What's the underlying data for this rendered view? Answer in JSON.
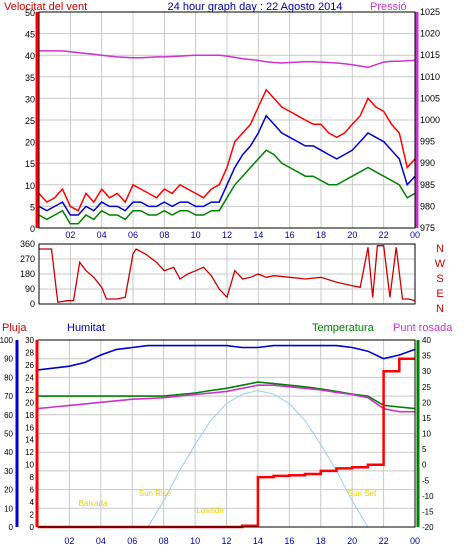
{
  "window": {
    "title": "24 hour graph day : 22 Agosto 2014"
  },
  "colors": {
    "background": "#ffffff",
    "plot_bg": "#ffffff",
    "grid": "#c8c8c8",
    "frame": "#000000",
    "wind_gust": "#ff0000",
    "wind_avg": "#0000cc",
    "wind_speed": "#008000",
    "pressure": "#cc33cc",
    "direction": "#cc0000",
    "rain": "#ff0000",
    "humidity": "#0000cc",
    "temperature": "#008000",
    "dewpoint": "#cc33cc",
    "solar": "#99ccee",
    "annotation": "#e6d200",
    "time_axis": "#0000aa"
  },
  "chart_data": [
    {
      "type": "line",
      "panel": "wind-pressure",
      "title": "24 hour graph day : 22 Agosto 2014",
      "ylabel_left": "Velocitat del vent",
      "ylabel_right": "Pressió",
      "x_ticks": [
        "02",
        "04",
        "06",
        "08",
        "10",
        "12",
        "14",
        "16",
        "18",
        "20",
        "22",
        "00"
      ],
      "ylim_left": [
        0,
        50
      ],
      "yticks_left": [
        0,
        5,
        10,
        15,
        20,
        25,
        30,
        35,
        40,
        45,
        50
      ],
      "ylim_right": [
        975,
        1025
      ],
      "yticks_right": [
        975,
        980,
        985,
        990,
        995,
        1000,
        1005,
        1010,
        1015,
        1020,
        1025
      ],
      "grid": true,
      "hours": [
        0,
        0.5,
        1,
        1.5,
        2,
        2.5,
        3,
        3.5,
        4,
        4.5,
        5,
        5.5,
        6,
        6.5,
        7,
        7.5,
        8,
        8.5,
        9,
        9.5,
        10,
        10.5,
        11,
        11.5,
        12,
        12.5,
        13,
        13.5,
        14,
        14.5,
        15,
        15.5,
        16,
        16.5,
        17,
        17.5,
        18,
        18.5,
        19,
        19.5,
        20,
        20.5,
        21,
        21.5,
        22,
        22.5,
        23,
        23.5,
        24
      ],
      "series": [
        {
          "axis": "left",
          "color_key": "wind_gust",
          "values": [
            8,
            6,
            7,
            9,
            5,
            4,
            8,
            6,
            9,
            7,
            8,
            6,
            10,
            9,
            8,
            7,
            9,
            8,
            10,
            9,
            8,
            7,
            9,
            10,
            14,
            20,
            22,
            24,
            28,
            32,
            30,
            28,
            27,
            26,
            25,
            24,
            24,
            22,
            21,
            22,
            24,
            26,
            30,
            28,
            27,
            24,
            22,
            14,
            16
          ]
        },
        {
          "axis": "left",
          "color_key": "wind_avg",
          "values": [
            5,
            4,
            5,
            6,
            3,
            3,
            5,
            4,
            6,
            5,
            5,
            4,
            6,
            6,
            5,
            5,
            6,
            5,
            6,
            6,
            5,
            5,
            6,
            6,
            10,
            14,
            17,
            19,
            22,
            26,
            24,
            22,
            21,
            20,
            19,
            19,
            18,
            17,
            16,
            17,
            18,
            20,
            22,
            21,
            20,
            18,
            16,
            10,
            12
          ]
        },
        {
          "axis": "left",
          "color_key": "wind_speed",
          "values": [
            3,
            2,
            3,
            4,
            1,
            1,
            3,
            2,
            4,
            3,
            3,
            2,
            4,
            4,
            3,
            3,
            4,
            3,
            4,
            4,
            3,
            3,
            4,
            4,
            7,
            10,
            12,
            14,
            16,
            18,
            17,
            15,
            14,
            13,
            12,
            12,
            11,
            10,
            10,
            11,
            12,
            13,
            14,
            13,
            12,
            11,
            10,
            7,
            8
          ]
        },
        {
          "axis": "right",
          "color_key": "pressure",
          "values": [
            1016,
            1016,
            1016,
            1016,
            1015.8,
            1015.6,
            1015.4,
            1015.2,
            1015,
            1014.8,
            1014.6,
            1014.5,
            1014.4,
            1014.4,
            1014.5,
            1014.6,
            1014.6,
            1014.7,
            1014.8,
            1014.9,
            1015,
            1015,
            1015,
            1015,
            1014.8,
            1014.5,
            1014.2,
            1014,
            1013.8,
            1013.5,
            1013.3,
            1013.2,
            1013.3,
            1013.4,
            1013.5,
            1013.5,
            1013.4,
            1013.3,
            1013.2,
            1013,
            1012.8,
            1012.5,
            1012.2,
            1012.8,
            1013.4,
            1013.6,
            1013.6,
            1013.7,
            1013.8
          ]
        }
      ]
    },
    {
      "type": "line",
      "panel": "wind-direction",
      "ylim": [
        0,
        360
      ],
      "yticks": [
        0,
        90,
        180,
        270,
        360
      ],
      "compass_labels": [
        "N",
        "W",
        "S",
        "E",
        "N"
      ],
      "grid": true,
      "series": [
        {
          "color_key": "direction",
          "hours": [
            0,
            0.8,
            1.2,
            1.8,
            2.2,
            2.6,
            3,
            3.5,
            4,
            4.3,
            5,
            5.5,
            6,
            6.2,
            6.8,
            7.5,
            8,
            8.6,
            9,
            9.5,
            10,
            10.5,
            11,
            11.5,
            12,
            12.5,
            13,
            13.5,
            14,
            14.5,
            15,
            16,
            17,
            18,
            19,
            20,
            20.5,
            21,
            21.3,
            21.6,
            22,
            22.4,
            22.8,
            23.2,
            23.6,
            24
          ],
          "values": [
            330,
            330,
            10,
            20,
            20,
            250,
            200,
            160,
            100,
            30,
            30,
            40,
            300,
            330,
            300,
            250,
            200,
            220,
            150,
            180,
            200,
            220,
            170,
            90,
            40,
            200,
            150,
            160,
            180,
            160,
            170,
            160,
            150,
            160,
            130,
            110,
            100,
            340,
            40,
            350,
            350,
            40,
            340,
            30,
            30,
            20
          ]
        }
      ]
    },
    {
      "type": "line",
      "panel": "atmospheric",
      "ylabels": [
        "Pluja",
        "Humitat",
        "Temperatura",
        "Punt rosada"
      ],
      "x_ticks": [
        "02",
        "04",
        "06",
        "08",
        "10",
        "12",
        "14",
        "16",
        "18",
        "20",
        "22",
        "00"
      ],
      "humidity_axis": {
        "ylim": [
          0,
          100
        ],
        "ticks": [
          0,
          10,
          20,
          30,
          40,
          50,
          60,
          70,
          80,
          90,
          100
        ]
      },
      "rain_axis": {
        "ylim": [
          0,
          30
        ],
        "ticks": [
          0,
          2,
          4,
          6,
          8,
          10,
          12,
          14,
          16,
          18,
          20,
          22,
          24,
          26,
          28,
          30
        ]
      },
      "temperature_axis": {
        "ylim": [
          -20,
          40
        ],
        "ticks": [
          -20,
          -15,
          -10,
          -5,
          0,
          5,
          10,
          15,
          20,
          25,
          30,
          35,
          40
        ]
      },
      "annotations": [
        "Baixada",
        "Sun Rise",
        "Lowtide",
        "Sun Set"
      ],
      "grid": true,
      "hours": [
        0,
        1,
        2,
        3,
        4,
        5,
        6,
        7,
        8,
        9,
        10,
        11,
        12,
        13,
        14,
        15,
        16,
        17,
        18,
        19,
        20,
        21,
        22,
        23,
        24
      ],
      "series": [
        {
          "name": "Pluja",
          "axis": "rain",
          "color_key": "rain",
          "values": [
            0,
            0,
            0,
            0,
            0,
            0,
            0,
            0,
            0,
            0,
            0,
            0,
            0,
            0.2,
            8,
            8.2,
            8.3,
            8.5,
            9,
            9.4,
            9.6,
            10,
            25,
            27,
            27
          ]
        },
        {
          "name": "Humitat",
          "axis": "humidity",
          "color_key": "humidity",
          "values": [
            84,
            85,
            86,
            88,
            92,
            95,
            96,
            97,
            97,
            97,
            97,
            97,
            97,
            96,
            96,
            97,
            97,
            97,
            97,
            97,
            96,
            94,
            90,
            92,
            95
          ]
        },
        {
          "name": "Temperatura",
          "axis": "temperature",
          "color_key": "temperature",
          "values": [
            22,
            22,
            22,
            22,
            22,
            22,
            22,
            22,
            22,
            22.5,
            23,
            23.8,
            24.5,
            25.5,
            26.5,
            26,
            25.5,
            25,
            24.3,
            23.5,
            22.6,
            22,
            19,
            18.5,
            18
          ]
        },
        {
          "name": "Punt rosada",
          "axis": "temperature",
          "color_key": "dewpoint",
          "values": [
            18,
            18.5,
            19,
            19.5,
            20,
            20.5,
            21,
            21.2,
            21.5,
            22,
            22.5,
            23,
            23.5,
            24.5,
            25.5,
            25.5,
            25,
            24.5,
            24,
            23.2,
            22.5,
            21.5,
            18,
            17,
            17
          ]
        },
        {
          "name": "solar",
          "axis": "humidity",
          "color_key": "solar",
          "values": [
            0,
            0,
            0,
            0,
            0,
            0,
            0,
            0,
            14,
            30,
            44,
            57,
            66,
            71,
            73,
            71,
            66,
            57,
            44,
            30,
            14,
            0,
            0,
            0,
            0
          ]
        }
      ]
    }
  ]
}
